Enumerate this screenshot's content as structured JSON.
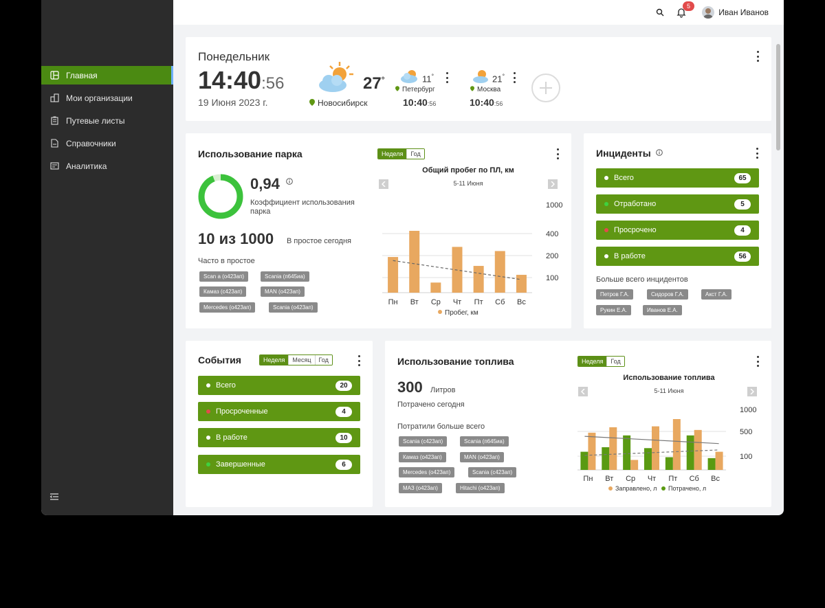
{
  "topbar": {
    "user_name": "Иван Иванов",
    "notifications_count": "5"
  },
  "sidebar": {
    "items": [
      {
        "label": "Главная",
        "icon": "home-icon",
        "active": true
      },
      {
        "label": "Мои организации",
        "icon": "organizations-icon"
      },
      {
        "label": "Путевые листы",
        "icon": "waybills-icon"
      },
      {
        "label": "Справочники",
        "icon": "directories-icon"
      },
      {
        "label": "Аналитика",
        "icon": "analytics-icon"
      }
    ]
  },
  "clock": {
    "weekday": "Понедельник",
    "time_main": "14:40",
    "time_sec": ":56",
    "date": "19 Июня 2023 г.",
    "main_temp": "27",
    "main_city": "Новосибирск",
    "cities": [
      {
        "temp": "11",
        "name": "Петербург",
        "time_main": "10:40",
        "time_sec": ":56"
      },
      {
        "temp": "21",
        "name": "Москва",
        "time_main": "10:40",
        "time_sec": ":56"
      }
    ]
  },
  "park": {
    "title": "Использование парка",
    "ratio": "0,94",
    "ratio_value": 0.94,
    "ratio_label": "Коэффициент использования парка",
    "idle_count": "10 из 1000",
    "idle_label": "В простое сегодня",
    "frequent_label": "Часто в простое",
    "chips": [
      "Scan a (о423ап)",
      "Scania (п645иа)",
      "Камаз (с423ап)",
      "MAN (о423ап)",
      "Mercedes (о423ап)",
      "Scania (о423ап)"
    ],
    "tabs": [
      "Неделя",
      "Год"
    ],
    "chart_title": "Общий пробег по ПЛ, км",
    "chart_period": "5-11 Июня",
    "legend": "Пробег, км"
  },
  "incidents": {
    "title": "Инциденты",
    "items": [
      {
        "label": "Всего",
        "count": "65",
        "dot": "#ffffff"
      },
      {
        "label": "Отработано",
        "count": "5",
        "dot": "#3fd13f"
      },
      {
        "label": "Просрочено",
        "count": "4",
        "dot": "#e24b4b"
      },
      {
        "label": "В работе",
        "count": "56",
        "dot": "#ffffff"
      }
    ],
    "top_label": "Больше всего инцидентов",
    "chips": [
      "Петров Г.А.",
      "Сидоров Г.А.",
      "Акст Г.А.",
      "Рукин Е.А.",
      "Иванов Е.А."
    ]
  },
  "events": {
    "title": "События",
    "tabs": [
      "Неделя",
      "Месяц",
      "Год"
    ],
    "items": [
      {
        "label": "Всего",
        "count": "20",
        "dot": "#ffffff"
      },
      {
        "label": "Просроченные",
        "count": "4",
        "dot": "#e24b4b"
      },
      {
        "label": "В работе",
        "count": "10",
        "dot": "#ffffff"
      },
      {
        "label": "Завершенные",
        "count": "6",
        "dot": "#3fd13f"
      }
    ]
  },
  "fuel": {
    "title": "Использование топлива",
    "amount": "300",
    "unit": "Литров",
    "spent_label": "Потрачено сегодня",
    "top_label": "Потратили больше всего",
    "chips": [
      "Scania (с423ап)",
      "Scania (п645иа)",
      "Камаз (о423ап)",
      "MAN (о423ап)",
      "Mercedes (о423ап)",
      "Scania (с423ап)",
      "МАЗ (о423ап)",
      "Hitachi (о423ап)"
    ],
    "tabs": [
      "Неделя",
      "Год"
    ],
    "chart_title": "Использование топлива",
    "chart_period": "5-11 Июня",
    "legend_refueled": "Заправлено, л",
    "legend_spent": "Потрачено, л"
  },
  "colors": {
    "accent": "#5f9713",
    "bar_orange": "#e8a860",
    "bar_green": "#5a9a12",
    "sidebar": "#2c2c2c"
  },
  "chart_data": [
    {
      "type": "bar",
      "title": "Общий пробег по ПЛ, км",
      "subtitle": "5-11 Июня",
      "categories": [
        "Пн",
        "Вт",
        "Ср",
        "Чт",
        "Пт",
        "Сб",
        "Вс"
      ],
      "yticks": [
        "1000",
        "400",
        "200",
        "100"
      ],
      "series": [
        {
          "name": "Пробег, км",
          "values": [
            300,
            520,
            85,
            385,
            225,
            350,
            150
          ]
        }
      ],
      "trendline": [
        270,
        110
      ],
      "legend_position": "bottom"
    },
    {
      "type": "bar",
      "title": "Использование топлива",
      "subtitle": "5-11 Июня",
      "categories": [
        "Пн",
        "Вт",
        "Ср",
        "Чт",
        "Пт",
        "Сб",
        "Вс"
      ],
      "yticks": [
        "1000",
        "500",
        "100"
      ],
      "series": [
        {
          "name": "Потрачено, л",
          "values": [
            200,
            250,
            380,
            240,
            140,
            380,
            130
          ]
        },
        {
          "name": "Заправлено, л",
          "values": [
            410,
            470,
            110,
            480,
            560,
            440,
            200
          ]
        }
      ],
      "legend_position": "bottom"
    }
  ]
}
